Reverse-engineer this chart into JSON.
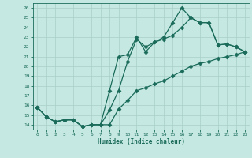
{
  "bg_color": "#c5e8e2",
  "grid_color": "#a8cfc8",
  "line_color": "#1a6b5a",
  "marker": "D",
  "markersize": 2.5,
  "linewidth": 0.9,
  "xlabel": "Humidex (Indice chaleur)",
  "xlim": [
    -0.5,
    23.5
  ],
  "ylim": [
    13.5,
    26.5
  ],
  "yticks": [
    14,
    15,
    16,
    17,
    18,
    19,
    20,
    21,
    22,
    23,
    24,
    25,
    26
  ],
  "xticks": [
    0,
    1,
    2,
    3,
    4,
    5,
    6,
    7,
    8,
    9,
    10,
    11,
    12,
    13,
    14,
    15,
    16,
    17,
    18,
    19,
    20,
    21,
    22,
    23
  ],
  "line1_x": [
    0,
    1,
    2,
    3,
    4,
    5,
    6,
    7,
    8,
    9,
    10,
    11,
    12,
    13,
    14,
    15,
    16,
    17,
    18,
    19,
    20,
    21,
    22,
    23
  ],
  "line1_y": [
    15.8,
    14.8,
    14.3,
    14.5,
    14.5,
    13.8,
    14.0,
    14.0,
    14.0,
    15.6,
    16.5,
    17.5,
    17.8,
    18.2,
    18.5,
    19.0,
    19.5,
    20.0,
    20.3,
    20.5,
    20.8,
    21.0,
    21.2,
    21.5
  ],
  "line2_x": [
    0,
    1,
    2,
    3,
    4,
    5,
    6,
    7,
    8,
    9,
    10,
    11,
    12,
    13,
    14,
    15,
    16,
    17,
    18,
    19,
    20,
    21,
    22,
    23
  ],
  "line2_y": [
    15.8,
    14.8,
    14.3,
    14.5,
    14.5,
    13.8,
    14.0,
    14.0,
    17.5,
    21.0,
    21.2,
    23.0,
    21.5,
    22.5,
    22.8,
    23.2,
    24.0,
    25.0,
    24.5,
    24.5,
    22.2,
    22.3,
    22.0,
    21.5
  ],
  "line3_x": [
    0,
    1,
    2,
    3,
    4,
    5,
    6,
    7,
    8,
    9,
    10,
    11,
    12,
    13,
    14,
    15,
    16,
    17,
    18,
    19,
    20,
    21,
    22,
    23
  ],
  "line3_y": [
    15.8,
    14.8,
    14.3,
    14.5,
    14.5,
    13.8,
    14.0,
    14.0,
    15.5,
    17.5,
    20.5,
    22.8,
    22.0,
    22.5,
    23.0,
    24.5,
    26.0,
    25.0,
    24.5,
    24.5,
    22.2,
    22.3,
    22.0,
    21.5
  ]
}
